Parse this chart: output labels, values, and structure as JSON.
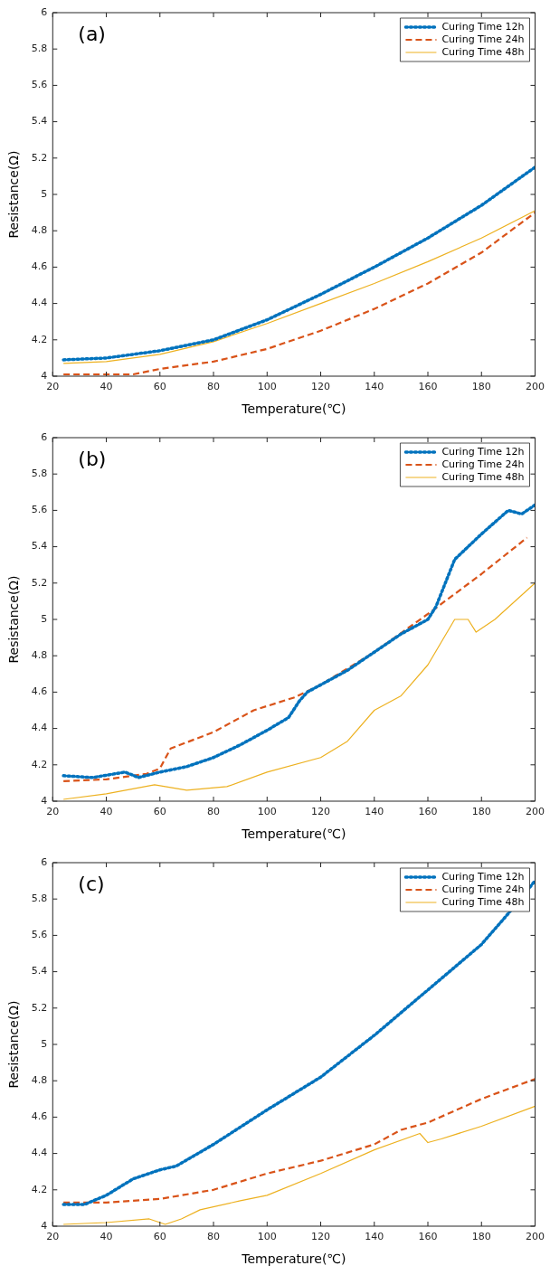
{
  "chart_data": [
    {
      "type": "line",
      "title": "(a)",
      "xlabel": "Temperature(℃)",
      "ylabel": "Resistance(Ω)",
      "xlim": [
        20,
        200
      ],
      "xticks": [
        20,
        40,
        60,
        80,
        100,
        120,
        140,
        160,
        180,
        200
      ],
      "ylim": [
        4,
        6
      ],
      "yticks": [
        4,
        4.2,
        4.4,
        4.6,
        4.8,
        5,
        5.2,
        5.4,
        5.6,
        5.8,
        6
      ],
      "grid": false,
      "legend": "top right",
      "marker": "none",
      "series": [
        {
          "name": "Curing Time 12h",
          "color": "#0072bd",
          "line_style": "dotted",
          "x": [
            24,
            40,
            60,
            80,
            100,
            120,
            140,
            160,
            180,
            200
          ],
          "values": [
            4.09,
            4.1,
            4.14,
            4.2,
            4.31,
            4.45,
            4.6,
            4.76,
            4.94,
            5.15
          ]
        },
        {
          "name": "Curing Time 24h",
          "color": "#d95319",
          "line_style": "dashed",
          "x": [
            24,
            40,
            50,
            60,
            80,
            100,
            120,
            140,
            160,
            180,
            200
          ],
          "values": [
            4.01,
            4.01,
            4.01,
            4.04,
            4.08,
            4.15,
            4.25,
            4.37,
            4.51,
            4.68,
            4.9
          ]
        },
        {
          "name": "Curing Time 48h",
          "color": "#edb120",
          "line_style": "solid",
          "x": [
            24,
            40,
            60,
            80,
            100,
            120,
            140,
            160,
            180,
            200
          ],
          "values": [
            4.07,
            4.08,
            4.12,
            4.19,
            4.29,
            4.4,
            4.51,
            4.63,
            4.76,
            4.91
          ]
        }
      ]
    },
    {
      "type": "line",
      "title": "(b)",
      "xlabel": "Temperature(℃)",
      "ylabel": "Resistance(Ω)",
      "xlim": [
        20,
        200
      ],
      "xticks": [
        20,
        40,
        60,
        80,
        100,
        120,
        140,
        160,
        180,
        200
      ],
      "ylim": [
        4,
        6
      ],
      "yticks": [
        4,
        4.2,
        4.4,
        4.6,
        4.8,
        5,
        5.2,
        5.4,
        5.6,
        5.8,
        6
      ],
      "grid": false,
      "legend": "top right",
      "marker": "none",
      "series": [
        {
          "name": "Curing Time 12h",
          "color": "#0072bd",
          "line_style": "dotted",
          "x": [
            24,
            35,
            47,
            52,
            60,
            70,
            80,
            90,
            100,
            108,
            112,
            115,
            120,
            130,
            140,
            150,
            160,
            163,
            170,
            180,
            190,
            195,
            200
          ],
          "values": [
            4.14,
            4.13,
            4.16,
            4.13,
            4.16,
            4.19,
            4.24,
            4.31,
            4.39,
            4.46,
            4.55,
            4.6,
            4.64,
            4.72,
            4.82,
            4.92,
            5.0,
            5.07,
            5.33,
            5.47,
            5.6,
            5.58,
            5.63
          ]
        },
        {
          "name": "Curing Time 24h",
          "color": "#d95319",
          "line_style": "dashed",
          "x": [
            24,
            40,
            55,
            60,
            64,
            80,
            95,
            110,
            120,
            140,
            160,
            180,
            197
          ],
          "values": [
            4.11,
            4.12,
            4.15,
            4.18,
            4.29,
            4.38,
            4.5,
            4.57,
            4.64,
            4.82,
            5.03,
            5.25,
            5.45
          ]
        },
        {
          "name": "Curing Time 48h",
          "color": "#edb120",
          "line_style": "solid",
          "x": [
            24,
            40,
            58,
            70,
            85,
            100,
            120,
            130,
            140,
            150,
            160,
            170,
            175,
            178,
            185,
            200
          ],
          "values": [
            4.01,
            4.04,
            4.09,
            4.06,
            4.08,
            4.16,
            4.24,
            4.33,
            4.5,
            4.58,
            4.75,
            5.0,
            5.0,
            4.93,
            5.0,
            5.2
          ]
        }
      ]
    },
    {
      "type": "line",
      "title": "(c)",
      "xlabel": "Temperature(℃)",
      "ylabel": "Resistance(Ω)",
      "xlim": [
        20,
        200
      ],
      "xticks": [
        20,
        40,
        60,
        80,
        100,
        120,
        140,
        160,
        180,
        200
      ],
      "ylim": [
        4,
        6
      ],
      "yticks": [
        4,
        4.2,
        4.4,
        4.6,
        4.8,
        5,
        5.2,
        5.4,
        5.6,
        5.8,
        6
      ],
      "grid": false,
      "legend": "top right",
      "marker": "none",
      "series": [
        {
          "name": "Curing Time 12h",
          "color": "#0072bd",
          "line_style": "dotted",
          "x": [
            24,
            32,
            40,
            50,
            60,
            66,
            80,
            100,
            120,
            140,
            160,
            180,
            190,
            200
          ],
          "values": [
            4.12,
            4.12,
            4.17,
            4.26,
            4.31,
            4.33,
            4.45,
            4.64,
            4.82,
            5.05,
            5.3,
            5.55,
            5.72,
            5.9
          ]
        },
        {
          "name": "Curing Time 24h",
          "color": "#d95319",
          "line_style": "dashed",
          "x": [
            24,
            40,
            60,
            80,
            100,
            120,
            140,
            150,
            160,
            180,
            200
          ],
          "values": [
            4.13,
            4.13,
            4.15,
            4.2,
            4.29,
            4.36,
            4.45,
            4.53,
            4.57,
            4.7,
            4.81
          ]
        },
        {
          "name": "Curing Time 48h",
          "color": "#edb120",
          "line_style": "solid",
          "x": [
            24,
            40,
            56,
            62,
            68,
            75,
            90,
            100,
            120,
            140,
            157,
            160,
            165,
            180,
            200
          ],
          "values": [
            4.01,
            4.02,
            4.04,
            4.01,
            4.04,
            4.09,
            4.14,
            4.17,
            4.29,
            4.42,
            4.51,
            4.46,
            4.48,
            4.55,
            4.66
          ]
        }
      ]
    }
  ]
}
